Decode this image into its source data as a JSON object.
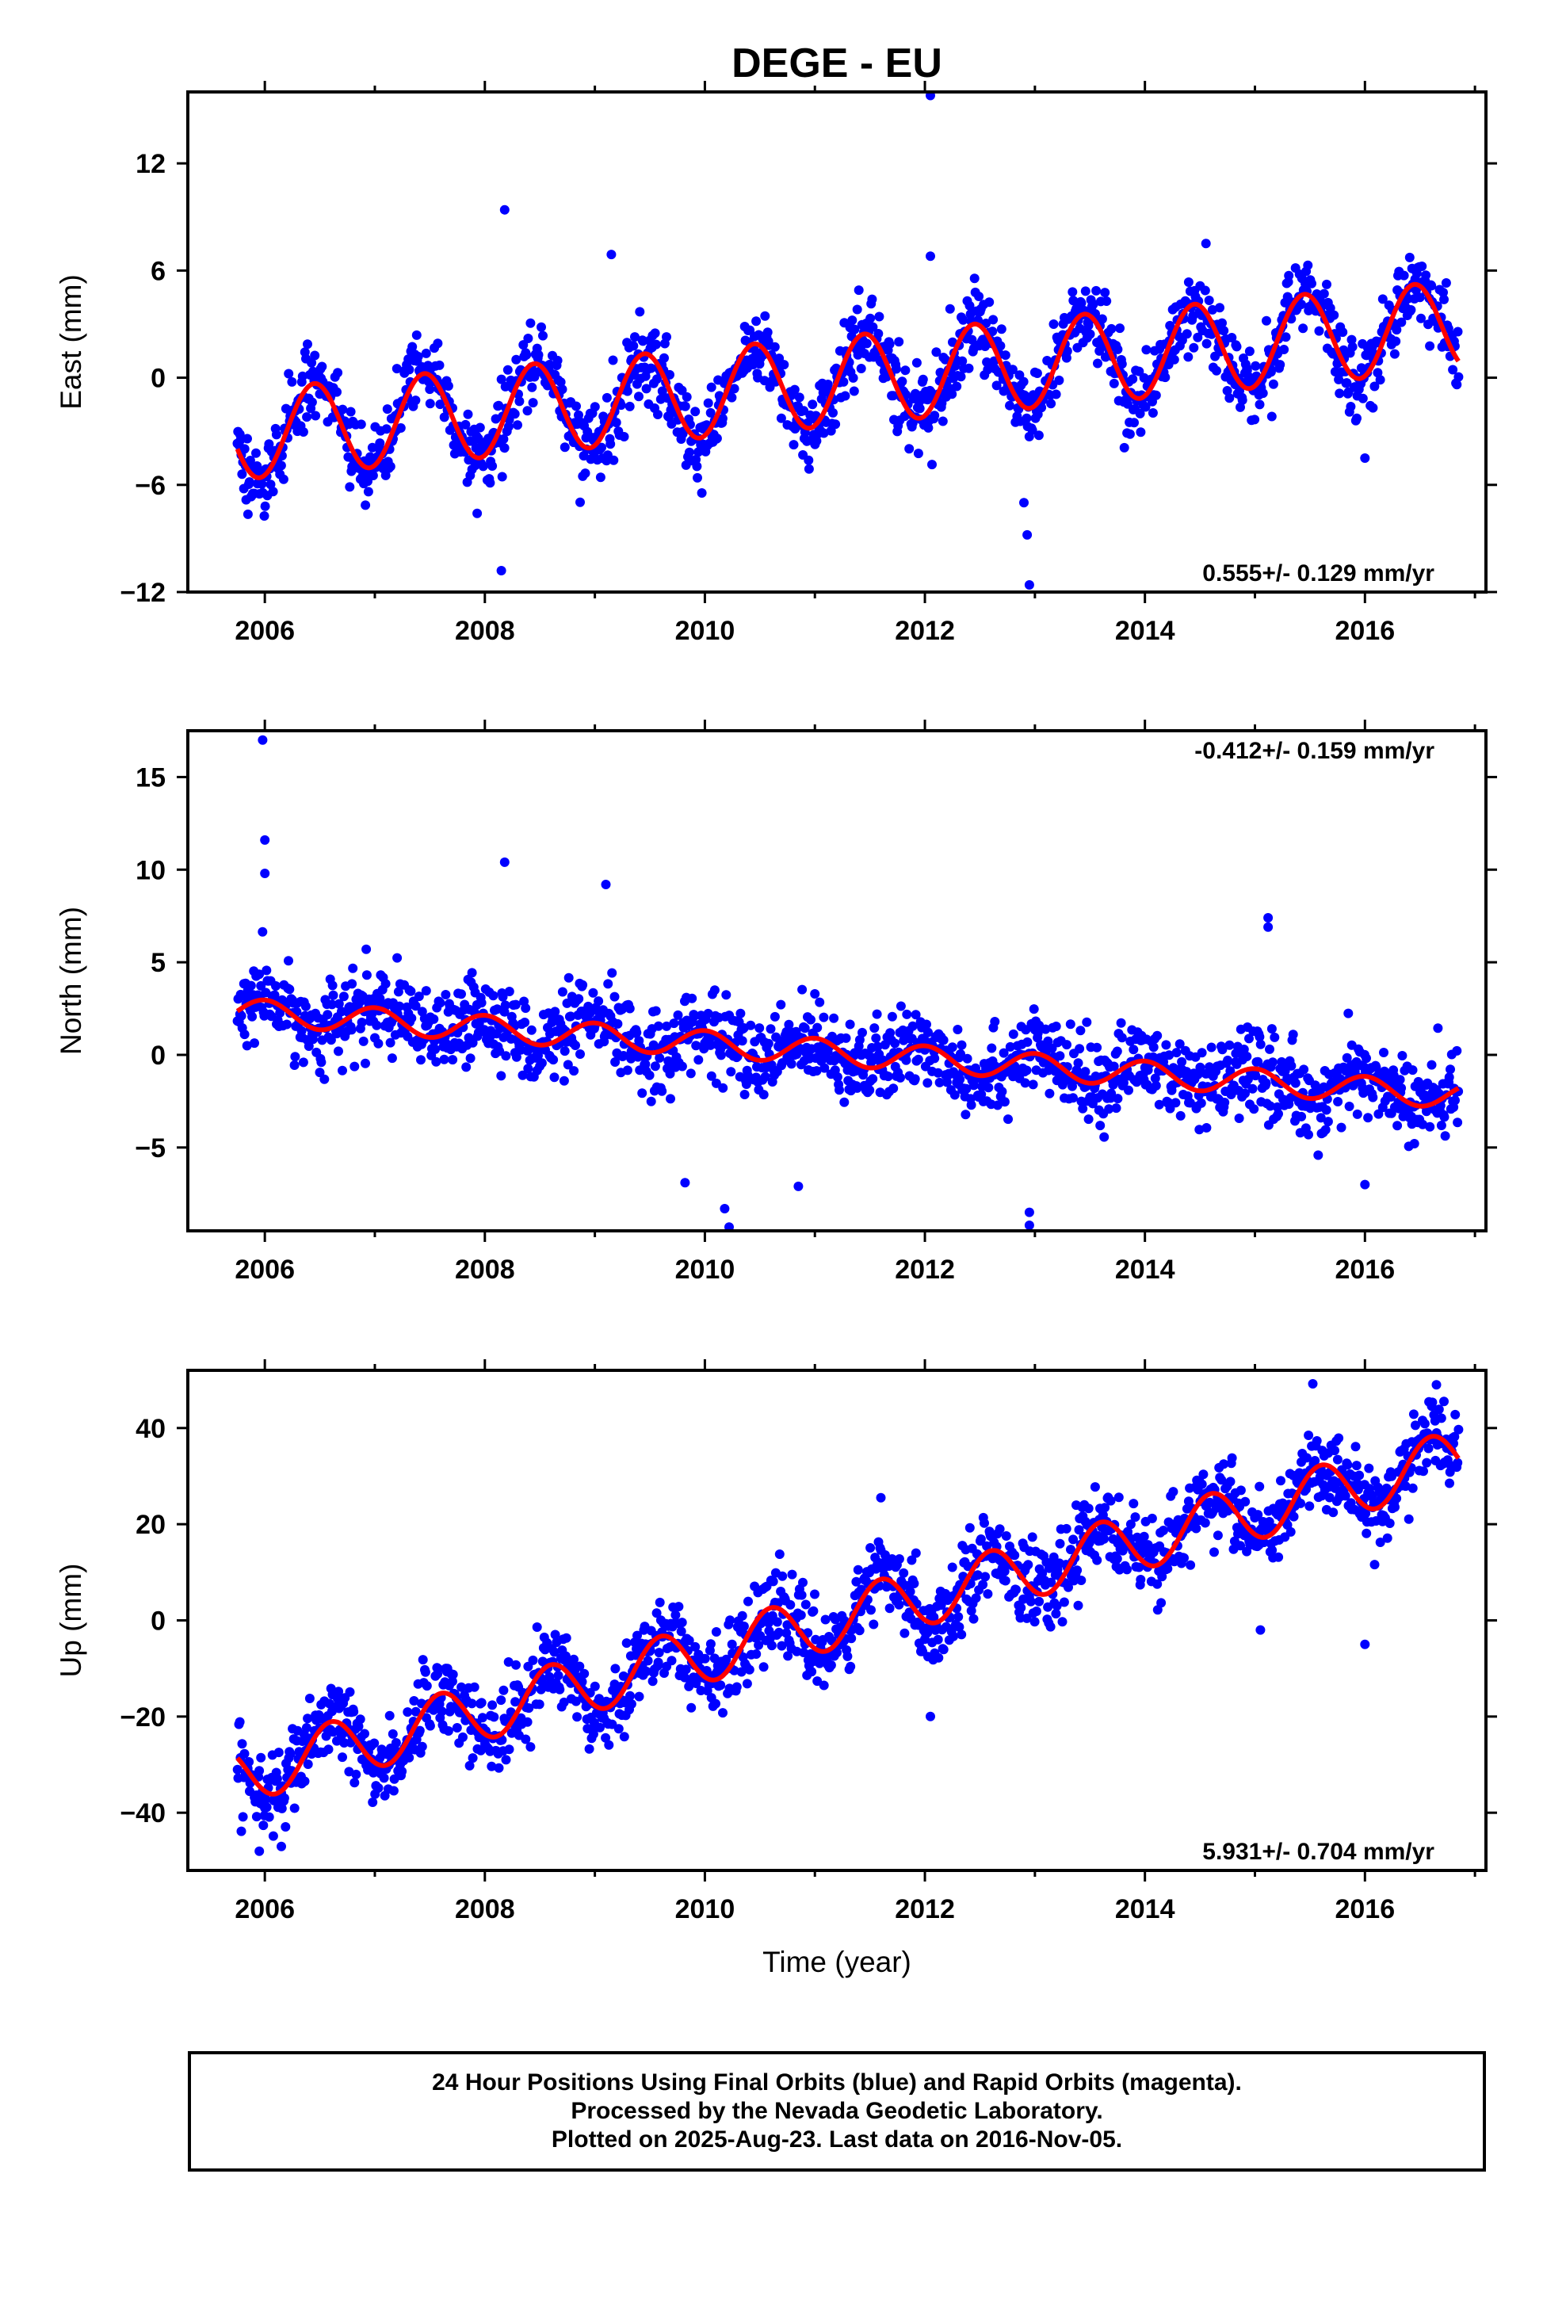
{
  "title": "DEGE - EU",
  "colors": {
    "final_orbits": "#0000ff",
    "model_fit": "#ff0000",
    "frame": "#000000"
  },
  "footer": {
    "line1": "24 Hour Positions Using Final Orbits (blue) and Rapid Orbits (magenta).",
    "line2": "Processed by the Nevada Geodetic Laboratory.",
    "line3": "Plotted on 2025-Aug-23. Last data on 2016-Nov-05."
  },
  "chart_data": [
    {
      "type": "scatter",
      "component": "east",
      "ylabel": "East (mm)",
      "xlabel": "",
      "xlim": [
        2005.3,
        2017.1
      ],
      "ylim": [
        -12,
        16
      ],
      "x_ticks": [
        2006,
        2008,
        2010,
        2012,
        2014,
        2016
      ],
      "x_tick_labels": [
        "2006",
        "2008",
        "2010",
        "2012",
        "2014",
        "2016"
      ],
      "y_ticks": [
        -12,
        -6,
        0,
        6,
        12
      ],
      "y_tick_labels": [
        "−12",
        "−6",
        "0",
        "6",
        "12"
      ],
      "rate_text": "0.555+/- 0.129 mm/yr",
      "rate_position": "bottom-right",
      "data_start": 2005.75,
      "data_end": 2016.85,
      "model": {
        "type": "line",
        "start": 2005.75,
        "end": 2016.85,
        "trend_mm_per_yr": 0.555,
        "value_at_2011": -0.3,
        "annual_amplitude": 2.5,
        "annual_peak_fraction": 0.45
      },
      "scatter_sigma": 1.1,
      "outliers": [
        [
          2008.18,
          9.4
        ],
        [
          2009.15,
          6.9
        ],
        [
          2012.05,
          15.8
        ],
        [
          2012.05,
          6.8
        ],
        [
          2008.15,
          -10.8
        ],
        [
          2007.93,
          -7.6
        ],
        [
          2012.95,
          -11.6
        ],
        [
          2012.93,
          -8.8
        ],
        [
          2012.9,
          -7.0
        ],
        [
          2016.0,
          -4.5
        ]
      ]
    },
    {
      "type": "scatter",
      "component": "north",
      "ylabel": "North (mm)",
      "xlabel": "",
      "xlim": [
        2005.3,
        2017.1
      ],
      "ylim": [
        -9.5,
        17.5
      ],
      "x_ticks": [
        2006,
        2008,
        2010,
        2012,
        2014,
        2016
      ],
      "x_tick_labels": [
        "2006",
        "2008",
        "2010",
        "2012",
        "2014",
        "2016"
      ],
      "y_ticks": [
        -5,
        0,
        5,
        10,
        15
      ],
      "y_tick_labels": [
        "−5",
        "0",
        "5",
        "10",
        "15"
      ],
      "rate_text": "-0.412+/- 0.159 mm/yr",
      "rate_position": "top-right",
      "data_start": 2005.75,
      "data_end": 2016.85,
      "model": {
        "type": "line",
        "start": 2005.75,
        "end": 2016.85,
        "trend_mm_per_yr": -0.412,
        "value_at_2011": 0.2,
        "annual_amplitude": 0.7,
        "annual_peak_fraction": 0.0
      },
      "scatter_sigma": 1.1,
      "outliers": [
        [
          2005.98,
          17.0
        ],
        [
          2006.0,
          11.6
        ],
        [
          2006.0,
          9.8
        ],
        [
          2008.18,
          10.4
        ],
        [
          2009.1,
          9.2
        ],
        [
          2010.18,
          -8.3
        ],
        [
          2010.22,
          -9.3
        ],
        [
          2012.95,
          -8.5
        ],
        [
          2012.95,
          -9.2
        ],
        [
          2015.12,
          7.4
        ],
        [
          2015.12,
          6.9
        ],
        [
          2016.0,
          -7.0
        ],
        [
          2010.85,
          -7.1
        ],
        [
          2009.82,
          -6.9
        ]
      ]
    },
    {
      "type": "scatter",
      "component": "up",
      "ylabel": "Up (mm)",
      "xlabel": "Time (year)",
      "xlim": [
        2005.3,
        2017.1
      ],
      "ylim": [
        -52,
        52
      ],
      "x_ticks": [
        2006,
        2008,
        2010,
        2012,
        2014,
        2016
      ],
      "x_tick_labels": [
        "2006",
        "2008",
        "2010",
        "2012",
        "2014",
        "2016"
      ],
      "y_ticks": [
        -40,
        -20,
        0,
        20,
        40
      ],
      "y_tick_labels": [
        "−40",
        "−20",
        "0",
        "20",
        "40"
      ],
      "rate_text": "5.931+/- 0.704 mm/yr",
      "rate_position": "bottom-right",
      "data_start": 2005.75,
      "data_end": 2016.85,
      "model": {
        "type": "line",
        "start": 2005.75,
        "end": 2016.85,
        "trend_mm_per_yr": 5.931,
        "value_at_2011": -1.0,
        "annual_amplitude": 6.0,
        "annual_peak_fraction": 0.6
      },
      "scatter_sigma": 4.2,
      "outliers": [
        [
          2005.95,
          -48.0
        ],
        [
          2006.15,
          -47.0
        ],
        [
          2012.05,
          -20.0
        ],
        [
          2015.05,
          -2.0
        ],
        [
          2016.0,
          -5.0
        ],
        [
          2011.6,
          25.5
        ],
        [
          2016.65,
          49.0
        ]
      ]
    }
  ]
}
